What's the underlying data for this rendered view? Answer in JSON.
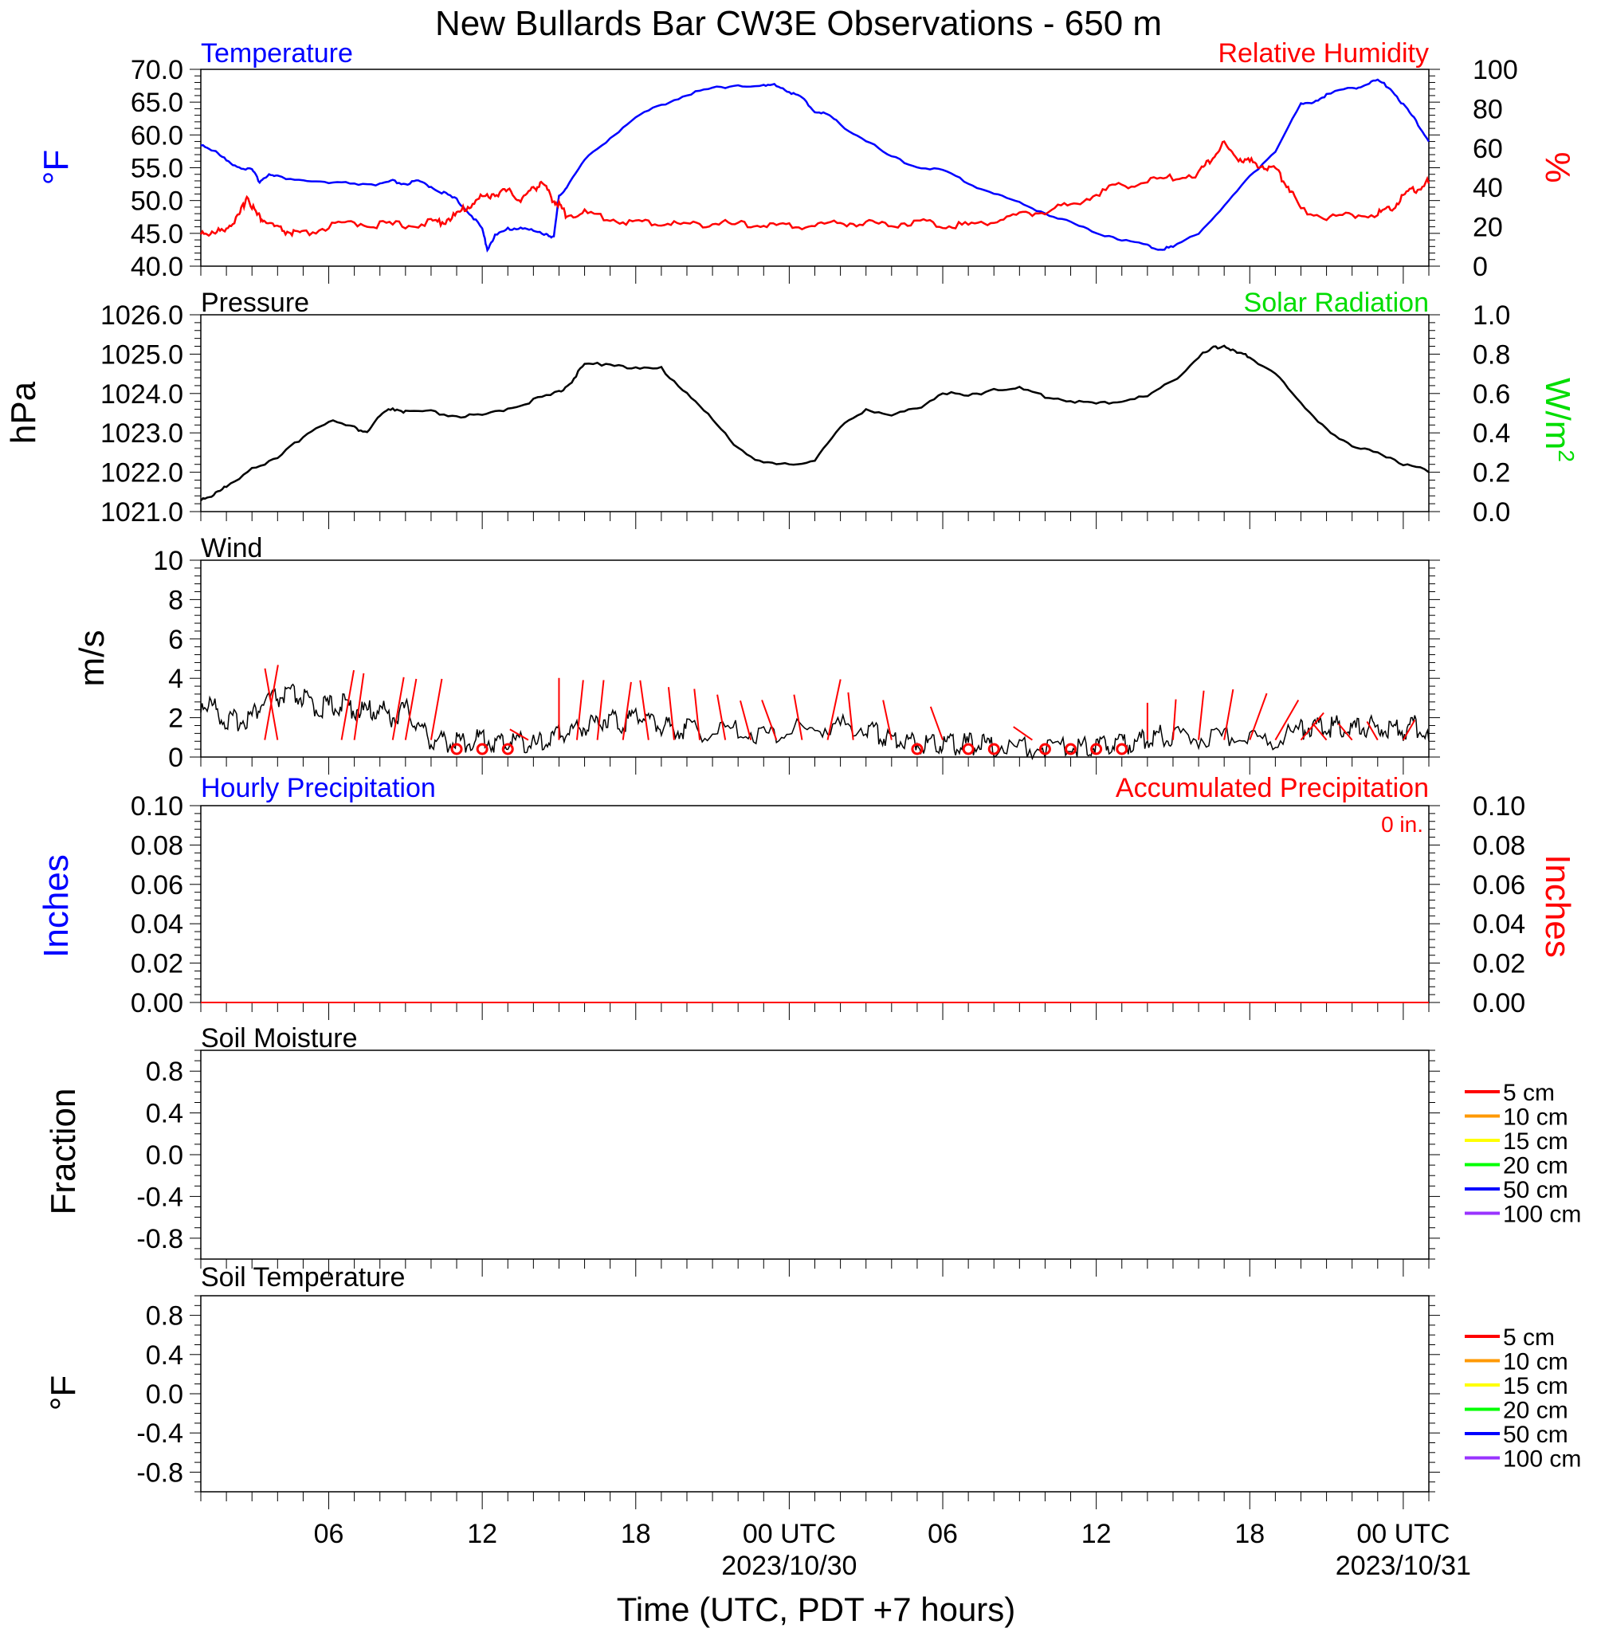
{
  "title": "New Bullards Bar CW3E Observations - 650 m",
  "xlabel": "Time (UTC, PDT +7 hours)",
  "x_ticks": [
    {
      "h": 6,
      "label": "06",
      "sub": ""
    },
    {
      "h": 12,
      "label": "12",
      "sub": ""
    },
    {
      "h": 18,
      "label": "18",
      "sub": ""
    },
    {
      "h": 24,
      "label": "00 UTC",
      "sub": "2023/10/30"
    },
    {
      "h": 30,
      "label": "06",
      "sub": ""
    },
    {
      "h": 36,
      "label": "12",
      "sub": ""
    },
    {
      "h": 42,
      "label": "18",
      "sub": ""
    },
    {
      "h": 48,
      "label": "00 UTC",
      "sub": "2023/10/31"
    }
  ],
  "x_range_hours": [
    1,
    49
  ],
  "colors": {
    "temperature": "#0000ff",
    "humidity": "#ff0000",
    "pressure": "#000000",
    "solar": "#00dd00",
    "wind": "#000000",
    "barb": "#ff0000",
    "hourly_precip": "#0000ff",
    "accum_precip": "#ff0000"
  },
  "panels": {
    "temp_rh": {
      "left_title": "Temperature",
      "right_title": "Relative Humidity",
      "left_unit": "°F",
      "right_unit": "%",
      "left_ticks": [
        "70.0",
        "65.0",
        "60.0",
        "55.0",
        "50.0",
        "45.0",
        "40.0"
      ],
      "right_ticks": [
        "100",
        "80",
        "60",
        "40",
        "20",
        "0"
      ]
    },
    "pressure": {
      "left_title": "Pressure",
      "right_title": "Solar Radiation",
      "left_unit": "hPa",
      "right_unit": "W/m",
      "right_unit_sup": "2",
      "left_ticks": [
        "1026.0",
        "1025.0",
        "1024.0",
        "1023.0",
        "1022.0",
        "1021.0"
      ],
      "right_ticks": [
        "1.0",
        "0.8",
        "0.6",
        "0.4",
        "0.2",
        "0.0"
      ]
    },
    "wind": {
      "left_title": "Wind",
      "left_unit": "m/s",
      "left_ticks": [
        "10",
        "8",
        "6",
        "4",
        "2",
        "0"
      ]
    },
    "precip": {
      "left_title": "Hourly Precipitation",
      "right_title": "Accumulated Precipitation",
      "total_label": "0 in.",
      "left_unit": "Inches",
      "right_unit": "Inches",
      "left_ticks": [
        "0.10",
        "0.08",
        "0.06",
        "0.04",
        "0.02",
        "0.00"
      ],
      "right_ticks": [
        "0.10",
        "0.08",
        "0.06",
        "0.04",
        "0.02",
        "0.00"
      ]
    },
    "soil_moisture": {
      "left_title": "Soil Moisture",
      "left_unit": "Fraction",
      "left_ticks": [
        "0.8",
        "0.4",
        "0.0",
        "-0.4",
        "-0.8"
      ]
    },
    "soil_temp": {
      "left_title": "Soil Temperature",
      "left_unit": "°F",
      "left_ticks": [
        "0.8",
        "0.4",
        "0.0",
        "-0.4",
        "-0.8"
      ]
    }
  },
  "soil_legend": [
    {
      "label": "5 cm",
      "color": "#ff0000"
    },
    {
      "label": "10 cm",
      "color": "#ff9900"
    },
    {
      "label": "15 cm",
      "color": "#ffff00"
    },
    {
      "label": "20 cm",
      "color": "#00ff00"
    },
    {
      "label": "50 cm",
      "color": "#0000ff"
    },
    {
      "label": "100 cm",
      "color": "#9933ff"
    }
  ],
  "chart_data": [
    {
      "type": "line",
      "title": "Temperature / Relative Humidity",
      "x_units": "hours since 2023/10/29 00 UTC",
      "series": [
        {
          "name": "Temperature",
          "units": "°F",
          "ylim": [
            40,
            70
          ],
          "x": [
            1,
            1.5,
            2,
            2.5,
            3,
            3.3,
            3.6,
            4,
            5,
            6,
            7,
            8,
            8.5,
            9,
            9.5,
            10,
            10.5,
            11,
            11.5,
            12,
            12.2,
            12.5,
            13,
            13.5,
            14,
            14.5,
            14.8,
            15,
            15.3,
            16,
            17,
            18,
            19,
            20,
            21,
            22,
            23,
            23.5,
            24,
            24.5,
            25,
            25.5,
            26,
            27,
            28,
            29,
            30,
            31,
            32,
            33,
            34,
            35,
            36,
            37,
            38,
            38.5,
            39,
            40,
            41,
            42,
            43,
            44,
            44.5,
            45,
            46,
            46.5,
            47,
            47.5,
            48,
            48.5,
            49
          ],
          "y": [
            58.5,
            57.5,
            56,
            55,
            54.5,
            52.8,
            53.8,
            53.5,
            53,
            52.5,
            52.5,
            52.3,
            52.8,
            52.4,
            52.8,
            52,
            51,
            50,
            48,
            45.5,
            42.5,
            44.5,
            45.5,
            45.8,
            45.2,
            44.8,
            44.3,
            50.5,
            52,
            56,
            59.5,
            62.5,
            64.5,
            66,
            67,
            67.5,
            67.3,
            67.5,
            66.5,
            65.5,
            63.5,
            63,
            61.5,
            59,
            56.5,
            55,
            54.5,
            52.5,
            51,
            49.5,
            48,
            46.5,
            45,
            44,
            43,
            42.5,
            42.8,
            45,
            49,
            53.5,
            57.5,
            64.5,
            65,
            66,
            67,
            67.5,
            68.2,
            67,
            64.5,
            62,
            59
          ]
        },
        {
          "name": "Relative Humidity",
          "units": "%",
          "ylim": [
            0,
            100
          ],
          "x": [
            1,
            1.5,
            2,
            2.5,
            2.8,
            3.2,
            3.5,
            4,
            4.5,
            5,
            6,
            7,
            8,
            9,
            10,
            10.5,
            11,
            11.5,
            12,
            12.5,
            13,
            13.5,
            14,
            14.3,
            14.7,
            15,
            15.3,
            16,
            17,
            18,
            19,
            20,
            21,
            22,
            23,
            24,
            25,
            26,
            27,
            28,
            29,
            30,
            31,
            32,
            33,
            34,
            35,
            36,
            37,
            38,
            39,
            40,
            40.5,
            41,
            41.5,
            42,
            42.5,
            43,
            43.5,
            44,
            45,
            46,
            47,
            47.5,
            48,
            48.5,
            49
          ],
          "y": [
            17,
            15,
            19,
            24,
            35,
            25,
            22,
            18,
            16,
            15,
            19,
            21,
            20,
            20,
            21,
            22,
            25,
            30,
            34,
            36,
            37,
            33,
            38,
            42,
            34,
            30,
            25,
            26,
            23,
            21,
            21,
            20,
            21,
            20,
            20,
            19,
            20,
            21,
            21,
            20,
            22,
            20,
            20,
            22,
            25,
            27,
            30,
            36,
            40,
            42,
            44,
            46,
            54,
            61,
            54,
            52,
            50,
            48,
            40,
            28,
            24,
            25,
            26,
            28,
            35,
            38,
            42
          ]
        },
        {
          "name": "Solar Radiation",
          "units": "W/m2",
          "ylim": [
            0,
            1
          ],
          "x": [],
          "y": []
        }
      ],
      "left_ylim": [
        40,
        70
      ],
      "right_ylim": [
        0,
        100
      ]
    },
    {
      "type": "line",
      "title": "Pressure",
      "series": [
        {
          "name": "Pressure",
          "units": "hPa",
          "ylim": [
            1021,
            1026
          ],
          "x": [
            1,
            1.5,
            2,
            3,
            4,
            5,
            6,
            7,
            7.5,
            8,
            8.5,
            9,
            10,
            11,
            12,
            13,
            14,
            15,
            15.5,
            16,
            17,
            18,
            19,
            20,
            21,
            22,
            23,
            24,
            25,
            26,
            27,
            28,
            29,
            30,
            31,
            32,
            33,
            34,
            35,
            36,
            37,
            38,
            39,
            40,
            40.5,
            41,
            41.5,
            42,
            43,
            44,
            45,
            46,
            47,
            48,
            49
          ],
          "y": [
            1021.3,
            1021.4,
            1021.6,
            1022.1,
            1022.3,
            1022.9,
            1023.3,
            1023.1,
            1023,
            1023.4,
            1023.6,
            1023.5,
            1023.5,
            1023.4,
            1023.4,
            1023.6,
            1023.8,
            1024,
            1024.3,
            1024.7,
            1024.75,
            1024.6,
            1024.6,
            1024,
            1023.3,
            1022.6,
            1022.2,
            1022.15,
            1022.3,
            1023.1,
            1023.6,
            1023.4,
            1023.6,
            1024,
            1023.9,
            1024.1,
            1024.1,
            1023.9,
            1023.8,
            1023.7,
            1023.8,
            1023.9,
            1024.3,
            1024.9,
            1025.1,
            1025.2,
            1025,
            1024.9,
            1024.5,
            1023.7,
            1023.1,
            1022.6,
            1022.5,
            1022.2,
            1022
          ]
        }
      ],
      "ylim": [
        1021,
        1026
      ]
    },
    {
      "type": "line",
      "title": "Wind",
      "series": [
        {
          "name": "Wind",
          "units": "m/s",
          "ylim": [
            0,
            10
          ],
          "x": [
            1,
            1.5,
            2,
            2.5,
            3,
            3.5,
            4,
            4.5,
            5,
            5.5,
            6,
            6.5,
            7,
            7.5,
            8,
            8.5,
            9,
            9.5,
            10,
            10.5,
            11,
            11.5,
            12,
            12.5,
            13,
            13.5,
            14,
            14.5,
            15,
            15.5,
            16,
            16.5,
            17,
            17.5,
            18,
            18.5,
            19,
            19.5,
            20,
            21,
            22,
            23,
            24,
            25,
            26,
            27,
            27.5,
            28,
            28.5,
            29,
            29.5,
            30,
            30.5,
            31,
            31.5,
            32,
            33,
            34,
            35,
            35.5,
            36,
            36.5,
            37,
            37.5,
            38,
            38.5,
            39,
            40,
            41,
            42,
            43,
            44,
            44.5,
            45,
            45.5,
            46,
            46.5,
            47,
            47.5,
            48,
            48.5,
            49
          ],
          "y": [
            2.5,
            2.3,
            1.5,
            1.6,
            1.8,
            2.6,
            2.7,
            2.9,
            2.7,
            2.2,
            2.3,
            2.4,
            2.2,
            2,
            2.2,
            1.7,
            2.2,
            1.3,
            0.6,
            0.5,
            0.5,
            0.5,
            0.7,
            0.4,
            0.5,
            0.6,
            0.3,
            0.5,
            0.9,
            1.1,
            1.3,
            1.5,
            1.8,
            1.4,
            2,
            1.6,
            1.3,
            1.2,
            1.1,
            1,
            1.1,
            0.8,
            1.1,
            1.1,
            1.3,
            1.2,
            0.9,
            0.7,
            0.6,
            0.5,
            0.4,
            0.5,
            0.3,
            0.4,
            0.3,
            0.3,
            0.2,
            0.2,
            0.2,
            0.3,
            0.3,
            0.4,
            0.3,
            0.5,
            0.6,
            0.8,
            0.8,
            0.7,
            0.8,
            0.7,
            0.6,
            1.1,
            1.3,
            1.2,
            1.3,
            1.1,
            1.3,
            1.2,
            1,
            1.1,
            1.3,
            0.8
          ]
        }
      ],
      "ylim": [
        0,
        10
      ]
    },
    {
      "type": "line",
      "title": "Hourly Precipitation / Accumulated Precipitation",
      "series": [
        {
          "name": "Hourly Precipitation",
          "units": "Inches",
          "x": [
            1,
            49
          ],
          "y": [
            0,
            0
          ]
        },
        {
          "name": "Accumulated Precipitation",
          "units": "Inches",
          "x": [
            1,
            49
          ],
          "y": [
            0,
            0
          ]
        }
      ],
      "ylim": [
        0,
        0.1
      ]
    },
    {
      "type": "line",
      "title": "Soil Moisture",
      "series": [],
      "ylim": [
        -1,
        1
      ]
    },
    {
      "type": "line",
      "title": "Soil Temperature",
      "series": [],
      "ylim": [
        -1,
        1
      ]
    }
  ]
}
